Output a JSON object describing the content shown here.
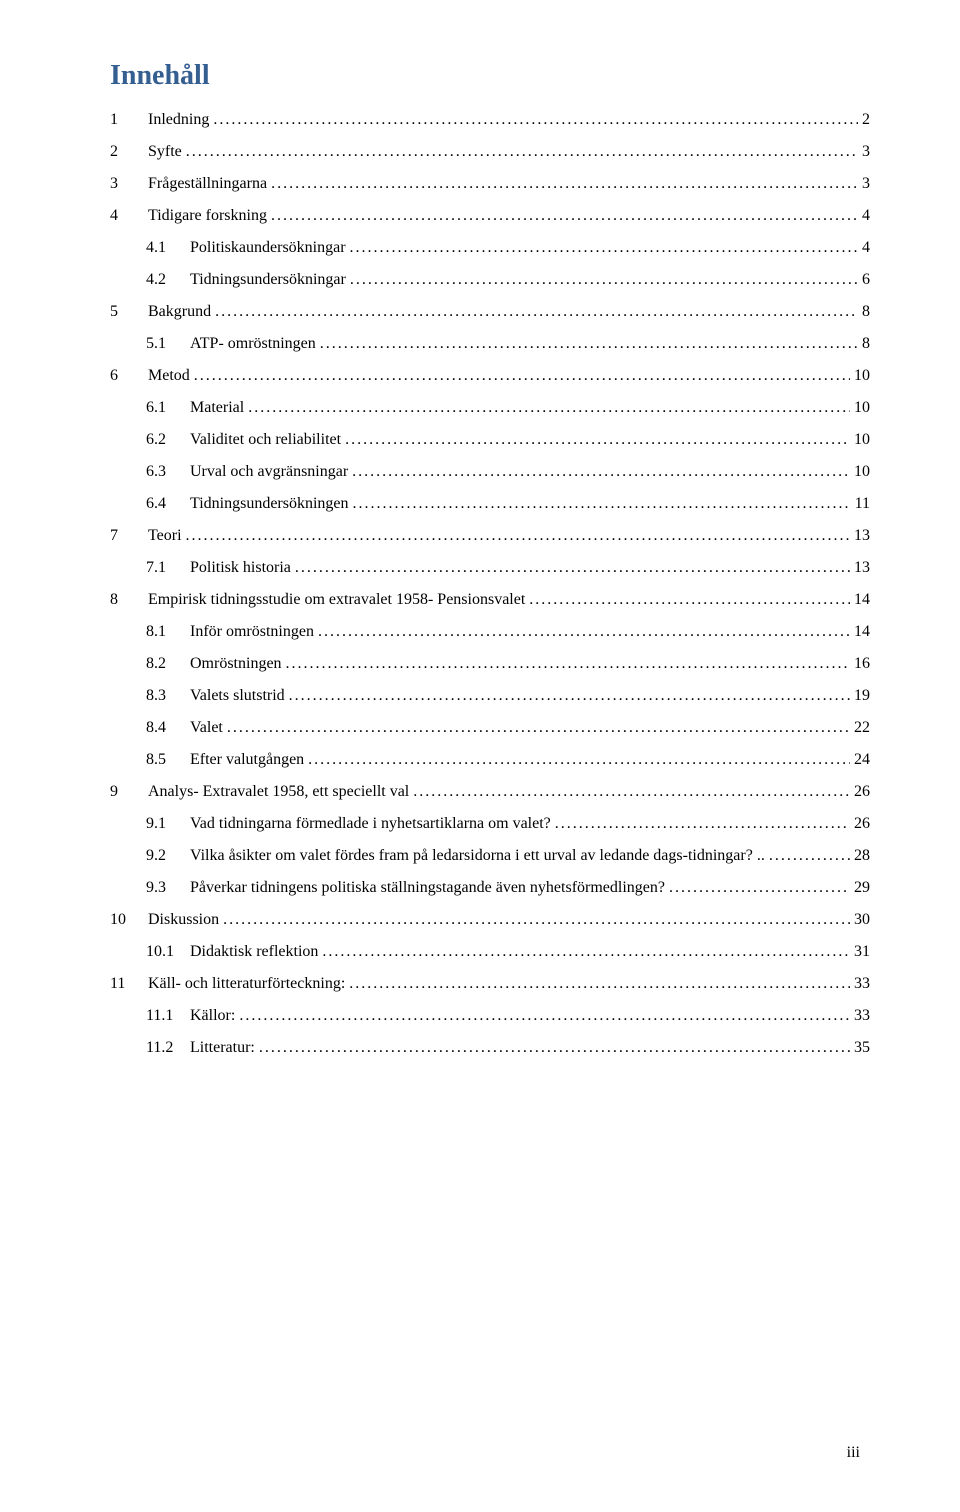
{
  "title": "Innehåll",
  "title_color": "#365f91",
  "page_label": "iii",
  "entries": [
    {
      "level": 0,
      "num": "1",
      "label": "Inledning",
      "page": "2"
    },
    {
      "level": 0,
      "num": "2",
      "label": "Syfte",
      "page": "3"
    },
    {
      "level": 0,
      "num": "3",
      "label": "Frågeställningarna",
      "page": "3"
    },
    {
      "level": 0,
      "num": "4",
      "label": "Tidigare forskning",
      "page": "4"
    },
    {
      "level": 1,
      "num": "4.1",
      "label": "Politiskaundersökningar",
      "page": "4"
    },
    {
      "level": 1,
      "num": "4.2",
      "label": "Tidningsundersökningar",
      "page": "6"
    },
    {
      "level": 0,
      "num": "5",
      "label": "Bakgrund",
      "page": "8"
    },
    {
      "level": 1,
      "num": "5.1",
      "label": "ATP- omröstningen",
      "page": "8"
    },
    {
      "level": 0,
      "num": "6",
      "label": "Metod",
      "page": "10"
    },
    {
      "level": 1,
      "num": "6.1",
      "label": "Material",
      "page": "10"
    },
    {
      "level": 1,
      "num": "6.2",
      "label": "Validitet och reliabilitet",
      "page": "10"
    },
    {
      "level": 1,
      "num": "6.3",
      "label": "Urval och avgränsningar",
      "page": "10"
    },
    {
      "level": 1,
      "num": "6.4",
      "label": "Tidningsundersökningen",
      "page": "11"
    },
    {
      "level": 0,
      "num": "7",
      "label": "Teori",
      "page": "13"
    },
    {
      "level": 1,
      "num": "7.1",
      "label": "Politisk historia",
      "page": "13"
    },
    {
      "level": 0,
      "num": "8",
      "label": "Empirisk tidningsstudie om extravalet 1958- Pensionsvalet",
      "page": "14"
    },
    {
      "level": 1,
      "num": "8.1",
      "label": "Inför omröstningen",
      "page": "14"
    },
    {
      "level": 1,
      "num": "8.2",
      "label": "Omröstningen",
      "page": "16"
    },
    {
      "level": 1,
      "num": "8.3",
      "label": "Valets slutstrid",
      "page": "19"
    },
    {
      "level": 1,
      "num": "8.4",
      "label": "Valet",
      "page": "22"
    },
    {
      "level": 1,
      "num": "8.5",
      "label": "Efter valutgången",
      "page": "24"
    },
    {
      "level": 0,
      "num": "9",
      "label": "Analys- Extravalet 1958, ett speciellt val",
      "page": "26"
    },
    {
      "level": 1,
      "num": "9.1",
      "label": "Vad tidningarna förmedlade i nyhetsartiklarna om valet?",
      "page": "26"
    },
    {
      "level": 1,
      "num": "9.2",
      "label": "Vilka åsikter om valet fördes fram på ledarsidorna i ett urval av ledande dags-tidningar? ..",
      "page": "28"
    },
    {
      "level": 1,
      "num": "9.3",
      "label": "Påverkar tidningens politiska ställningstagande även nyhetsförmedlingen?",
      "page": "29"
    },
    {
      "level": 0,
      "num": "10",
      "label": "Diskussion",
      "page": "30"
    },
    {
      "level": 1,
      "num": "10.1",
      "label": "Didaktisk reflektion",
      "page": "31"
    },
    {
      "level": 0,
      "num": "11",
      "label": "Käll- och litteraturförteckning:",
      "page": "33"
    },
    {
      "level": 1,
      "num": "11.1",
      "label": "Källor:",
      "page": "33"
    },
    {
      "level": 1,
      "num": "11.2",
      "label": "Litteratur:",
      "page": "35"
    }
  ]
}
